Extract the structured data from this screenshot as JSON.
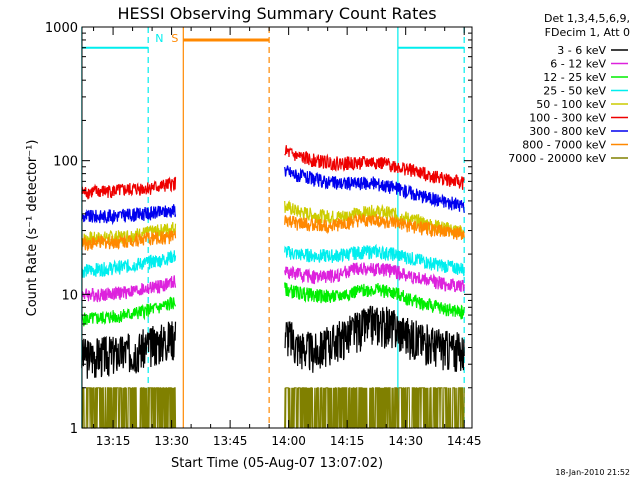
{
  "chart_data": {
    "type": "line",
    "title": "HESSI Observing Summary Count Rates",
    "xlabel": "Start Time (05-Aug-07 13:07:02)",
    "ylabel": "Count Rate (s⁻¹ detector⁻¹)",
    "yscale": "log",
    "xunit": "HH:MM (UT, 05-Aug-07)",
    "xlim": [
      "13:07:02",
      "14:47:00"
    ],
    "ylim": [
      1,
      1000
    ],
    "xticks": [
      "13:15",
      "13:30",
      "13:45",
      "14:00",
      "14:15",
      "14:30",
      "14:45"
    ],
    "yticks": [
      {
        "value": 1,
        "label": "1"
      },
      {
        "value": 10,
        "label": "10"
      },
      {
        "value": 100,
        "label": "100"
      },
      {
        "value": 1000,
        "label": "1000"
      }
    ],
    "legend": {
      "position": "right",
      "header": [
        "Det 1,3,4,5,6,9,",
        "FDecim 1, Att 0"
      ]
    },
    "series": [
      {
        "name": "3 - 6 keV",
        "color": "#000000",
        "x": [
          "13:07",
          "13:12",
          "13:17",
          "13:22",
          "13:27",
          "13:31",
          "13:33",
          "13:59",
          "14:02",
          "14:07",
          "14:12",
          "14:17",
          "14:22",
          "14:27",
          "14:32",
          "14:37",
          "14:42",
          "14:45"
        ],
        "values": [
          3.5,
          3.6,
          3.7,
          4.0,
          4.5,
          5.0,
          null,
          5.5,
          4.2,
          3.8,
          4.6,
          5.5,
          6.3,
          5.8,
          4.8,
          4.3,
          3.9,
          3.8
        ]
      },
      {
        "name": "6 - 12 keV",
        "color": "#dd22dd",
        "x": [
          "13:07",
          "13:12",
          "13:17",
          "13:22",
          "13:27",
          "13:31",
          "13:33",
          "13:59",
          "14:02",
          "14:07",
          "14:12",
          "14:17",
          "14:22",
          "14:27",
          "14:32",
          "14:37",
          "14:42",
          "14:45"
        ],
        "values": [
          10,
          10,
          10.3,
          10.8,
          11.5,
          12.5,
          null,
          15,
          14.2,
          13.5,
          13.8,
          15.5,
          15.5,
          15,
          13.5,
          12.5,
          11.8,
          11.5
        ]
      },
      {
        "name": "12 - 25 keV",
        "color": "#00ee00",
        "x": [
          "13:07",
          "13:12",
          "13:17",
          "13:22",
          "13:27",
          "13:31",
          "13:33",
          "13:59",
          "14:02",
          "14:07",
          "14:12",
          "14:17",
          "14:22",
          "14:27",
          "14:32",
          "14:37",
          "14:42",
          "14:45"
        ],
        "values": [
          6.5,
          6.7,
          6.9,
          7.4,
          8.0,
          8.8,
          null,
          11,
          10.4,
          9.8,
          9.6,
          10.5,
          11,
          10.3,
          9,
          8.2,
          7.6,
          7.3
        ]
      },
      {
        "name": "25 - 50 keV",
        "color": "#00eeee",
        "x": [
          "13:07",
          "13:12",
          "13:17",
          "13:22",
          "13:27",
          "13:31",
          "13:33",
          "13:59",
          "14:02",
          "14:07",
          "14:12",
          "14:17",
          "14:22",
          "14:27",
          "14:32",
          "14:37",
          "14:42",
          "14:45"
        ],
        "values": [
          15,
          15.5,
          16,
          17,
          18,
          19.5,
          null,
          21,
          20,
          19.5,
          19.5,
          20.5,
          21,
          20,
          18.5,
          17,
          16,
          15.5
        ]
      },
      {
        "name": "50 - 100 keV",
        "color": "#cccc00",
        "x": [
          "13:07",
          "13:12",
          "13:17",
          "13:22",
          "13:27",
          "13:31",
          "13:33",
          "13:59",
          "14:02",
          "14:07",
          "14:12",
          "14:17",
          "14:22",
          "14:27",
          "14:32",
          "14:37",
          "14:42",
          "14:45"
        ],
        "values": [
          26,
          26.5,
          27,
          28.5,
          30,
          32,
          null,
          46,
          42,
          39,
          38,
          40,
          42,
          40,
          36,
          33,
          30.5,
          29.5
        ]
      },
      {
        "name": "100 - 300 keV",
        "color": "#ee0000",
        "x": [
          "13:07",
          "13:12",
          "13:17",
          "13:22",
          "13:27",
          "13:31",
          "13:33",
          "13:59",
          "14:02",
          "14:07",
          "14:12",
          "14:17",
          "14:22",
          "14:27",
          "14:32",
          "14:37",
          "14:42",
          "14:45"
        ],
        "values": [
          58,
          59,
          60,
          62,
          64,
          68,
          null,
          118,
          108,
          100,
          96,
          96,
          98,
          92,
          84,
          77,
          71,
          68
        ]
      },
      {
        "name": "300 - 800 keV",
        "color": "#0000ee",
        "x": [
          "13:07",
          "13:12",
          "13:17",
          "13:22",
          "13:27",
          "13:31",
          "13:33",
          "13:59",
          "14:02",
          "14:07",
          "14:12",
          "14:17",
          "14:22",
          "14:27",
          "14:32",
          "14:37",
          "14:42",
          "14:45"
        ],
        "values": [
          38,
          38.5,
          39,
          40,
          41,
          43,
          null,
          85,
          78,
          72,
          68,
          68,
          68,
          63,
          57,
          52,
          48,
          46
        ]
      },
      {
        "name": "800 - 7000 keV",
        "color": "#ff8800",
        "x": [
          "13:07",
          "13:12",
          "13:17",
          "13:22",
          "13:27",
          "13:31",
          "13:33",
          "13:59",
          "14:02",
          "14:07",
          "14:12",
          "14:17",
          "14:22",
          "14:27",
          "14:32",
          "14:37",
          "14:42",
          "14:45"
        ],
        "values": [
          24,
          24.5,
          25,
          26,
          26.5,
          27,
          null,
          36,
          34,
          33,
          33,
          35,
          36,
          34,
          32,
          30.5,
          29,
          28
        ]
      },
      {
        "name": "7000 - 20000 keV",
        "color": "#808000",
        "x": [
          "13:07",
          "13:12",
          "13:17",
          "13:22",
          "13:27",
          "13:31",
          "13:33",
          "13:59",
          "14:02",
          "14:07",
          "14:12",
          "14:17",
          "14:22",
          "14:27",
          "14:32",
          "14:37",
          "14:42",
          "14:45"
        ],
        "values": [
          1.5,
          1.5,
          1.5,
          1.5,
          1.5,
          1.5,
          null,
          1.5,
          1.5,
          1.5,
          1.5,
          1.5,
          1.5,
          1.5,
          1.5,
          1.5,
          1.5,
          1.5
        ]
      }
    ],
    "flags": {
      "night": {
        "label": "N",
        "color": "#00eeee",
        "level": 700,
        "intervals": [
          [
            "13:07",
            "13:24"
          ],
          [
            "14:28",
            "14:45"
          ]
        ]
      },
      "saa": {
        "label": "S",
        "color": "#ff8800",
        "level": 800,
        "intervals": [
          [
            "13:33",
            "13:55"
          ]
        ]
      }
    },
    "timestamp": "18-Jan-2010 21:52"
  }
}
